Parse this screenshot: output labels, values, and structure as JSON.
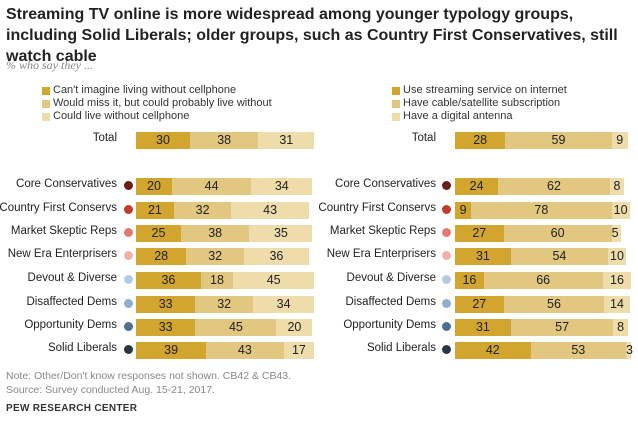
{
  "title": "Streaming TV online is more widespread among younger typology groups, including Solid Liberals; older groups, such as Country First Conservatives, still watch cable",
  "subtitle": "% who say they ...",
  "note": "Note: Other/Don't know responses not shown. CB42 & CB43.",
  "source": "Source: Survey conducted Aug. 15-21, 2017.",
  "org": "PEW RESEARCH CENTER",
  "colors": [
    "#d1a52e",
    "#e2c780",
    "#eedcab"
  ],
  "group_colors": {
    "Core Conservatives": "#6b1d1a",
    "Country First Conservs": "#c23b2c",
    "Market Skeptic Reps": "#e07b6f",
    "New Era Enterprisers": "#f0b0a8",
    "Devout & Diverse": "#b5cce0",
    "Disaffected Dems": "#8fb0cb",
    "Opportunity Dems": "#4f6f8c",
    "Solid Liberals": "#263645"
  },
  "chart_data": [
    {
      "type": "bar",
      "stacked": true,
      "orientation": "horizontal",
      "xlim": [
        0,
        100
      ],
      "categories": [
        "Total",
        "Core Conservatives",
        "Country First Conservs",
        "Market Skeptic Reps",
        "New Era Enterprisers",
        "Devout & Diverse",
        "Disaffected Dems",
        "Opportunity Dems",
        "Solid Liberals"
      ],
      "series": [
        {
          "name": "Can't imagine living without cellphone",
          "values": [
            30,
            20,
            21,
            25,
            28,
            36,
            33,
            33,
            39
          ]
        },
        {
          "name": "Would miss it, but could probably live without",
          "values": [
            38,
            44,
            32,
            38,
            32,
            18,
            32,
            45,
            43
          ]
        },
        {
          "name": "Could live without cellphone",
          "values": [
            31,
            34,
            43,
            35,
            36,
            45,
            34,
            20,
            17
          ]
        }
      ]
    },
    {
      "type": "bar",
      "stacked": true,
      "orientation": "horizontal",
      "xlim": [
        0,
        100
      ],
      "categories": [
        "Total",
        "Core Conservatives",
        "Country First Conservs",
        "Market Skeptic Reps",
        "New Era Enterprisers",
        "Devout & Diverse",
        "Disaffected Dems",
        "Opportunity Dems",
        "Solid Liberals"
      ],
      "series": [
        {
          "name": "Use streaming service on internet",
          "values": [
            28,
            24,
            9,
            27,
            31,
            16,
            27,
            31,
            42
          ]
        },
        {
          "name": "Have cable/satellite subscription",
          "values": [
            59,
            62,
            78,
            60,
            54,
            66,
            56,
            57,
            53
          ]
        },
        {
          "name": "Have a digital antenna",
          "values": [
            9,
            8,
            10,
            5,
            10,
            16,
            14,
            8,
            3
          ]
        }
      ]
    }
  ]
}
